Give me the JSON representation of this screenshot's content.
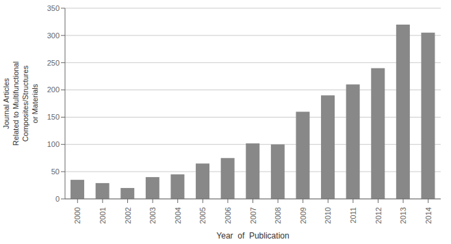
{
  "chart_data": {
    "type": "bar",
    "categories": [
      "2000",
      "2001",
      "2002",
      "2003",
      "2004",
      "2005",
      "2006",
      "2007",
      "2008",
      "2009",
      "2010",
      "2011",
      "2012",
      "2013",
      "2014"
    ],
    "values": [
      35,
      29,
      20,
      40,
      45,
      65,
      75,
      102,
      100,
      160,
      190,
      210,
      240,
      320,
      305
    ],
    "color": "#888888",
    "xlabel": "Year  of  Publication",
    "ylabel": "Journal Articles\nRelated to Multifunctional\nComposites/Structures\nor Materials",
    "ylim": [
      0,
      350
    ],
    "yticks": [
      0,
      50,
      100,
      150,
      200,
      250,
      300,
      350
    ],
    "grid": true
  }
}
